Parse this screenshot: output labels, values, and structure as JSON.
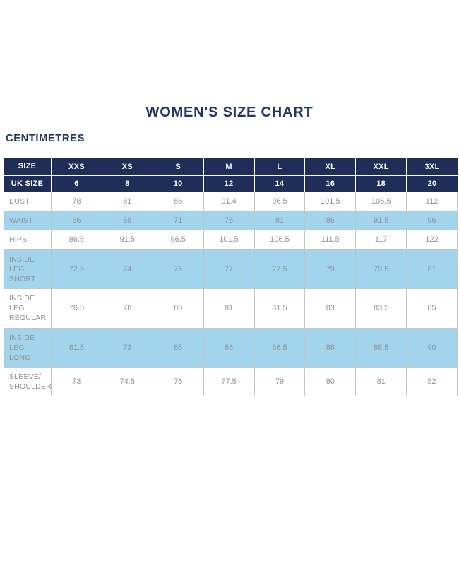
{
  "page": {
    "title": "WOMEN'S SIZE CHART",
    "unit_label": "CENTIMETRES"
  },
  "colors": {
    "navy": "#1e2e58",
    "title_navy": "#213766",
    "light_blue": "#a2d4eb",
    "grid_line": "#c3c5c9",
    "value_text": "#8e939b",
    "label_text": "#3b4249"
  },
  "table": {
    "size_header": [
      "SIZE",
      "XXS",
      "XS",
      "S",
      "M",
      "L",
      "XL",
      "XXL",
      "3XL"
    ],
    "uk_size_row": [
      "UK SIZE",
      "6",
      "8",
      "10",
      "12",
      "14",
      "16",
      "18",
      "20"
    ],
    "rows": [
      {
        "label": "BUST",
        "shaded": false,
        "values": [
          "78",
          "81",
          "86",
          "91.4",
          "96.5",
          "101.5",
          "106.5",
          "112"
        ]
      },
      {
        "label": "WAIST",
        "shaded": true,
        "values": [
          "66",
          "68",
          "71",
          "76",
          "81",
          "86",
          "91.5",
          "96"
        ]
      },
      {
        "label": "HIPS",
        "shaded": false,
        "values": [
          "86.5",
          "91.5",
          "96.5",
          "101.5",
          "106.5",
          "111.5",
          "117",
          "122"
        ]
      },
      {
        "label": "INSIDE LEG SHORT",
        "shaded": true,
        "values": [
          "72.5",
          "74",
          "76",
          "77",
          "77.5",
          "79",
          "79.5",
          "81"
        ]
      },
      {
        "label": "INSIDE LEG REGULAR",
        "shaded": false,
        "values": [
          "76.5",
          "78",
          "80",
          "81",
          "81.5",
          "83",
          "83.5",
          "85"
        ]
      },
      {
        "label": "INSIDE LEG LONG",
        "shaded": true,
        "values": [
          "81.5",
          "73",
          "85",
          "86",
          "86.5",
          "88",
          "88.5",
          "90"
        ]
      },
      {
        "label": "SLEEVE/​SHOULDER",
        "shaded": false,
        "values": [
          "73",
          "74.5",
          "76",
          "77.5",
          "79",
          "80",
          "81",
          "82"
        ]
      }
    ]
  },
  "chart_data": {
    "type": "table",
    "title": "WOMEN'S SIZE CHART",
    "unit": "CENTIMETRES",
    "columns": [
      "SIZE",
      "XXS",
      "XS",
      "S",
      "M",
      "L",
      "XL",
      "XXL",
      "3XL"
    ],
    "uk_sizes": [
      6,
      8,
      10,
      12,
      14,
      16,
      18,
      20
    ],
    "rows": [
      {
        "measurement": "BUST",
        "values": [
          78,
          81,
          86,
          91.4,
          96.5,
          101.5,
          106.5,
          112
        ]
      },
      {
        "measurement": "WAIST",
        "values": [
          66,
          68,
          71,
          76,
          81,
          86,
          91.5,
          96
        ]
      },
      {
        "measurement": "HIPS",
        "values": [
          86.5,
          91.5,
          96.5,
          101.5,
          106.5,
          111.5,
          117,
          122
        ]
      },
      {
        "measurement": "INSIDE LEG SHORT",
        "values": [
          72.5,
          74,
          76,
          77,
          77.5,
          79,
          79.5,
          81
        ]
      },
      {
        "measurement": "INSIDE LEG REGULAR",
        "values": [
          76.5,
          78,
          80,
          81,
          81.5,
          83,
          83.5,
          85
        ]
      },
      {
        "measurement": "INSIDE LEG LONG",
        "values": [
          81.5,
          73,
          85,
          86,
          86.5,
          88,
          88.5,
          90
        ]
      },
      {
        "measurement": "SLEEVE/SHOULDER",
        "values": [
          73,
          74.5,
          76,
          77.5,
          79,
          80,
          81,
          82
        ]
      }
    ]
  }
}
